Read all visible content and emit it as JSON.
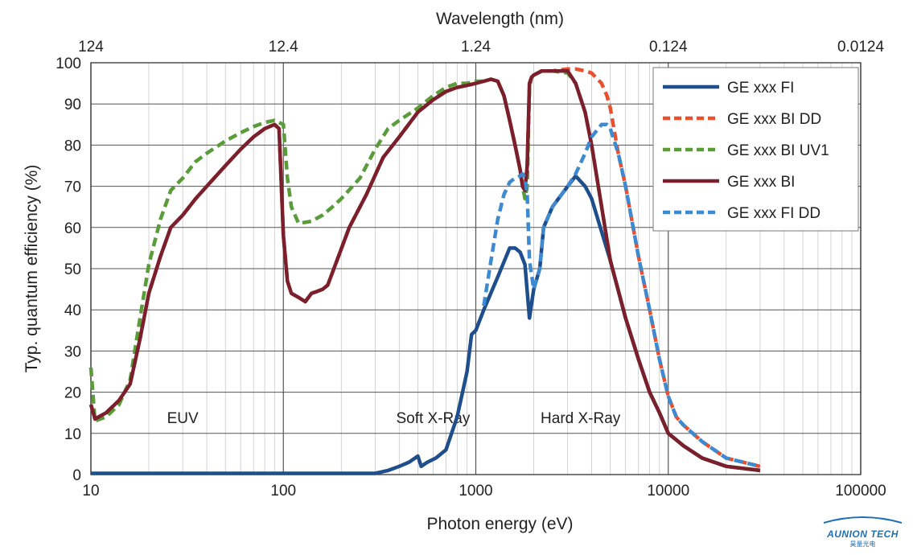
{
  "chart_data": {
    "type": "line",
    "xlabel": "Photon energy (eV)",
    "ylabel": "Typ. quantum efficiency (%)",
    "x2label": "Wavelength (nm)",
    "xscale": "log",
    "xlim": [
      10,
      100000
    ],
    "ylim": [
      0,
      100
    ],
    "grid": true,
    "legend_position": "top-right",
    "x_ticks": [
      10,
      100,
      1000,
      10000,
      100000
    ],
    "x_tick_labels": [
      "10",
      "100",
      "1000",
      "10000",
      "100000"
    ],
    "y_ticks": [
      0,
      10,
      20,
      30,
      40,
      50,
      60,
      70,
      80,
      90,
      100
    ],
    "y_tick_labels": [
      "0",
      "10",
      "20",
      "30",
      "40",
      "50",
      "60",
      "70",
      "80",
      "90",
      "100"
    ],
    "x2_ticks": [
      10,
      100,
      1000,
      10000,
      100000
    ],
    "x2_tick_labels": [
      "124",
      "12.4",
      "1.24",
      "0.124",
      "0.0124"
    ],
    "annotations": [
      {
        "text": "EUV",
        "x": 30,
        "y": 12.5
      },
      {
        "text": "Soft X-Ray",
        "x": 600,
        "y": 12.5
      },
      {
        "text": "Hard X-Ray",
        "x": 3500,
        "y": 12.5
      }
    ],
    "series": [
      {
        "name": "GE xxx FI",
        "color": "#1f4e8c",
        "dash": "solid",
        "width": 4.5,
        "x": [
          10,
          50,
          100,
          200,
          300,
          350,
          400,
          450,
          500,
          520,
          560,
          620,
          700,
          800,
          900,
          950,
          1000,
          1100,
          1300,
          1500,
          1600,
          1700,
          1800,
          1900,
          2000,
          2150,
          2250,
          2500,
          3000,
          3300,
          3700,
          4000,
          5000,
          6000,
          7000,
          8000,
          9000,
          10000,
          12000,
          15000,
          20000,
          30000
        ],
        "y": [
          0.3,
          0.3,
          0.3,
          0.3,
          0.3,
          1.0,
          2.0,
          3.0,
          4.5,
          2.0,
          3.0,
          4.0,
          6.0,
          14.0,
          25.0,
          34.0,
          35.0,
          40.0,
          48.0,
          55.0,
          55.0,
          54.0,
          51.0,
          38.0,
          45.0,
          50.0,
          60.0,
          65.0,
          70.0,
          72.5,
          70.0,
          67.0,
          52.0,
          38.0,
          28.0,
          20.0,
          15.0,
          10.0,
          7.0,
          4.0,
          2.0,
          1.0
        ]
      },
      {
        "name": "GE xxx BI DD",
        "color": "#e8502f",
        "dash": "dash",
        "width": 4.5,
        "x": [
          10,
          10.5,
          12,
          14,
          16,
          18,
          20,
          23,
          26,
          30,
          35,
          40,
          50,
          60,
          70,
          80,
          90,
          95,
          100,
          105,
          110,
          120,
          130,
          140,
          150,
          160,
          170,
          190,
          220,
          270,
          330,
          400,
          500,
          600,
          700,
          800,
          900,
          1000,
          1100,
          1200,
          1300,
          1400,
          1500,
          1600,
          1700,
          1750,
          1800,
          1850,
          1900,
          1950,
          2000,
          2200,
          2500,
          3000,
          3300,
          3700,
          4000,
          4500,
          4800,
          5000,
          5500,
          6000,
          7000,
          8000,
          9000,
          10000,
          11000,
          12000,
          15000,
          20000,
          30000
        ],
        "y": [
          17,
          13.5,
          15,
          18,
          22,
          33,
          44,
          53,
          60,
          63,
          67,
          70,
          75,
          79,
          82,
          84,
          85,
          84,
          58,
          47,
          44,
          43,
          42,
          44,
          44.5,
          45,
          46,
          52,
          60,
          68,
          77,
          82,
          88,
          91,
          93,
          94,
          94.5,
          95,
          95.5,
          96,
          95.5,
          92,
          86,
          80,
          74,
          70,
          69,
          75,
          95,
          96.5,
          97,
          98,
          98,
          98.5,
          98.5,
          98,
          97.5,
          95,
          92,
          89,
          78,
          70,
          53,
          40,
          28,
          19,
          14,
          12,
          8,
          4,
          2
        ]
      },
      {
        "name": "GE xxx BI UV1",
        "color": "#5a9c3a",
        "dash": "dash",
        "width": 4.5,
        "x": [
          10,
          10.5,
          12,
          14,
          16,
          18,
          20,
          23,
          26,
          30,
          35,
          40,
          50,
          60,
          70,
          80,
          90,
          100,
          105,
          110,
          120,
          140,
          160,
          180,
          200,
          250,
          300,
          350,
          400,
          500,
          600,
          700,
          800,
          900,
          1000,
          1100,
          1200,
          1300,
          1400,
          1500,
          1600,
          1700,
          1750,
          1800,
          1850,
          1900,
          1950,
          2000,
          2200,
          2500,
          3000,
          3300,
          3700,
          4000,
          5000,
          6000,
          7000,
          8000,
          9000,
          10000,
          12000,
          15000,
          20000,
          30000
        ],
        "y": [
          26,
          13,
          14,
          17,
          23,
          38,
          51,
          62,
          69,
          72,
          76,
          78,
          81,
          83,
          84.5,
          85.5,
          86,
          85,
          72,
          65,
          61,
          61.5,
          63,
          65,
          67,
          72,
          79,
          84,
          86,
          89,
          92,
          94,
          95,
          95,
          95.5,
          95.5,
          96,
          95.5,
          92,
          86,
          80,
          74,
          70,
          67,
          70,
          94,
          96.5,
          97,
          98,
          98,
          97.5,
          95,
          88,
          80,
          52,
          38,
          28,
          20,
          15,
          10,
          7,
          4,
          2,
          1
        ]
      },
      {
        "name": "GE xxx BI",
        "color": "#7a1f2b",
        "dash": "solid",
        "width": 4.5,
        "x": [
          10,
          10.5,
          12,
          14,
          16,
          18,
          20,
          23,
          26,
          30,
          35,
          40,
          50,
          60,
          70,
          80,
          90,
          95,
          100,
          105,
          110,
          120,
          130,
          140,
          150,
          160,
          170,
          190,
          220,
          270,
          330,
          400,
          500,
          600,
          700,
          800,
          900,
          1000,
          1100,
          1200,
          1300,
          1400,
          1500,
          1600,
          1700,
          1750,
          1800,
          1850,
          1900,
          1950,
          2000,
          2200,
          2500,
          3000,
          3300,
          3700,
          4000,
          5000,
          6000,
          7000,
          8000,
          9000,
          10000,
          12000,
          15000,
          20000,
          30000
        ],
        "y": [
          17,
          13.5,
          15,
          18,
          22,
          33,
          44,
          53,
          60,
          63,
          67,
          70,
          75,
          79,
          82,
          84,
          85,
          84,
          58,
          47,
          44,
          43,
          42,
          44,
          44.5,
          45,
          46,
          52,
          60,
          68,
          77,
          82,
          88,
          91,
          93,
          94,
          94.5,
          95,
          95.5,
          96,
          95.5,
          92,
          86,
          80,
          74,
          70,
          69,
          75,
          95,
          96.5,
          97,
          98,
          98,
          98,
          95,
          88,
          80,
          52,
          38,
          28,
          20,
          15,
          10,
          7,
          4,
          2,
          1
        ]
      },
      {
        "name": "GE xxx FI DD",
        "color": "#3d8ad0",
        "dash": "dash",
        "width": 4.5,
        "x": [
          1100,
          1200,
          1300,
          1400,
          1500,
          1600,
          1700,
          1750,
          1800,
          1850,
          1900,
          2000,
          2150,
          2250,
          2500,
          3000,
          3300,
          3700,
          4000,
          4500,
          4800,
          5000,
          5500,
          6000,
          7000,
          8000,
          9000,
          10000,
          11000,
          12000,
          15000,
          20000,
          30000
        ],
        "y": [
          41,
          52,
          62,
          68,
          71,
          72,
          72.5,
          73,
          72,
          68,
          52,
          45,
          50,
          60,
          65,
          70,
          73,
          78,
          82,
          85,
          85,
          84,
          78,
          70,
          53,
          40,
          28,
          19,
          14,
          12,
          8,
          4,
          2
        ]
      }
    ]
  },
  "logo": {
    "main": "AUNION TECH",
    "sub": "昊量光电"
  }
}
